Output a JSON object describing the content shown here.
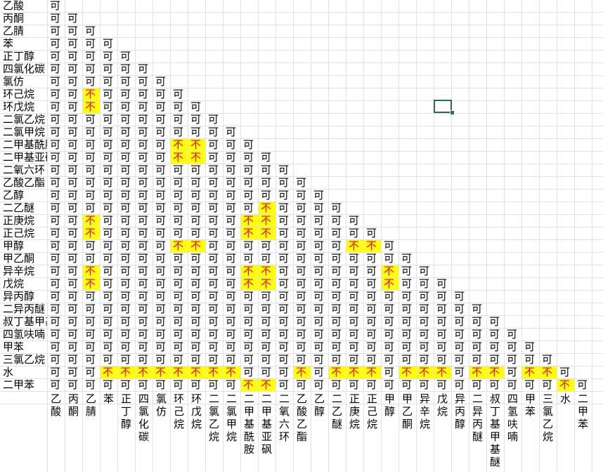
{
  "sheet": {
    "colors": {
      "incompatible_fill": "#ffff00",
      "incompatible_text": "#ff0000",
      "selection": "#217346"
    },
    "rows": [
      {
        "label": "乙酸",
        "cells": "可"
      },
      {
        "label": "丙酮",
        "cells": "可可"
      },
      {
        "label": "乙腈",
        "cells": "可可可"
      },
      {
        "label": "苯",
        "cells": "可可可可"
      },
      {
        "label": "正丁醇",
        "cells": "可可可可可"
      },
      {
        "label": "四氯化碳",
        "cells": "可可可可可可"
      },
      {
        "label": "氯仿",
        "cells": "可可可可可可可"
      },
      {
        "label": "环己烷",
        "cells": "可可不可可可可可"
      },
      {
        "label": "环戊烷",
        "cells": "可可不可可可可可可"
      },
      {
        "label": "二氯乙烷",
        "cells": "可可可可可可可可可可"
      },
      {
        "label": "二氯甲烷",
        "cells": "可可可可可可可可可可可"
      },
      {
        "label": "二甲基酰胺",
        "cells": "可可可可可可可不不可可可"
      },
      {
        "label": "二甲基亚砜",
        "cells": "可可可可可可可不不可可可可"
      },
      {
        "label": "二氧六环",
        "cells": "可可可可可可可可可可可可可可"
      },
      {
        "label": "乙酸乙酯",
        "cells": "可可可可可可可可可可可可可可可"
      },
      {
        "label": "乙醇",
        "cells": "可可可可可可可可可可可可可可可可"
      },
      {
        "label": "二乙醚",
        "cells": "可可可可可可可可可可可可不可可可可"
      },
      {
        "label": "正庚烷",
        "cells": "可可不可可可可可可可可不不可可可可可"
      },
      {
        "label": "正己烷",
        "cells": "可可不可可可可可可可可不不可可可可可可"
      },
      {
        "label": "甲醇",
        "cells": "可可可可可可可不不可可可可可可可可不不可"
      },
      {
        "label": "甲乙酮",
        "cells": "可可可可可可可可可可可可可可可可可可可可可"
      },
      {
        "label": "异辛烷",
        "cells": "可可不可可可可可可可可不不可可可可可可不可可"
      },
      {
        "label": "戊烷",
        "cells": "可可不可可可可可可可可不不可可可可可可不可可可"
      },
      {
        "label": "异丙醇",
        "cells": "可可可可可可可可可可可可可可可可可可可可可可可可"
      },
      {
        "label": "二异丙醚",
        "cells": "可可可可可可可可可可可可可可可可可可可可可可可可可"
      },
      {
        "label": "叔丁基甲基醚",
        "cells": "可可可可可可可可可可可可可可可可可可可可可可可可可可"
      },
      {
        "label": "四氢呋喃",
        "cells": "可可可可可可可可可可可可可可可可可可可可可可可可可可可"
      },
      {
        "label": "甲苯",
        "cells": "可可可可可可可可可可可可可可可可可可可可可可可可可可可可"
      },
      {
        "label": "三氯乙烷",
        "cells": "可可可可可可可可可可可可可可可可可可可可可可可可可可可可可"
      },
      {
        "label": "水",
        "cells": "可可可不不不不不不不不可可可不可不不不可不不不可不不可不不可"
      },
      {
        "label": "二甲苯",
        "cells": "可可可可可可可可可可可不不可可可可可可可可可可可可可可可可不可"
      }
    ],
    "columns": [
      "乙酸",
      "丙酮",
      "乙腈",
      "苯",
      "正丁醇",
      "四氯化碳",
      "氯仿",
      "环己烷",
      "环戊烷",
      "二氯乙烷",
      "二氯甲烷",
      "二甲基酰胺",
      "二甲基亚砜",
      "二氧六环",
      "乙酸乙酯",
      "乙醇",
      "二乙醚",
      "正庚烷",
      "正己烷",
      "甲醇",
      "甲乙酮",
      "异辛烷",
      "戊烷",
      "异丙醇",
      "二异丙醚",
      "叔丁基甲基醚",
      "四氢呋喃",
      "甲苯",
      "三氯乙烷",
      "水",
      "二甲苯"
    ]
  }
}
